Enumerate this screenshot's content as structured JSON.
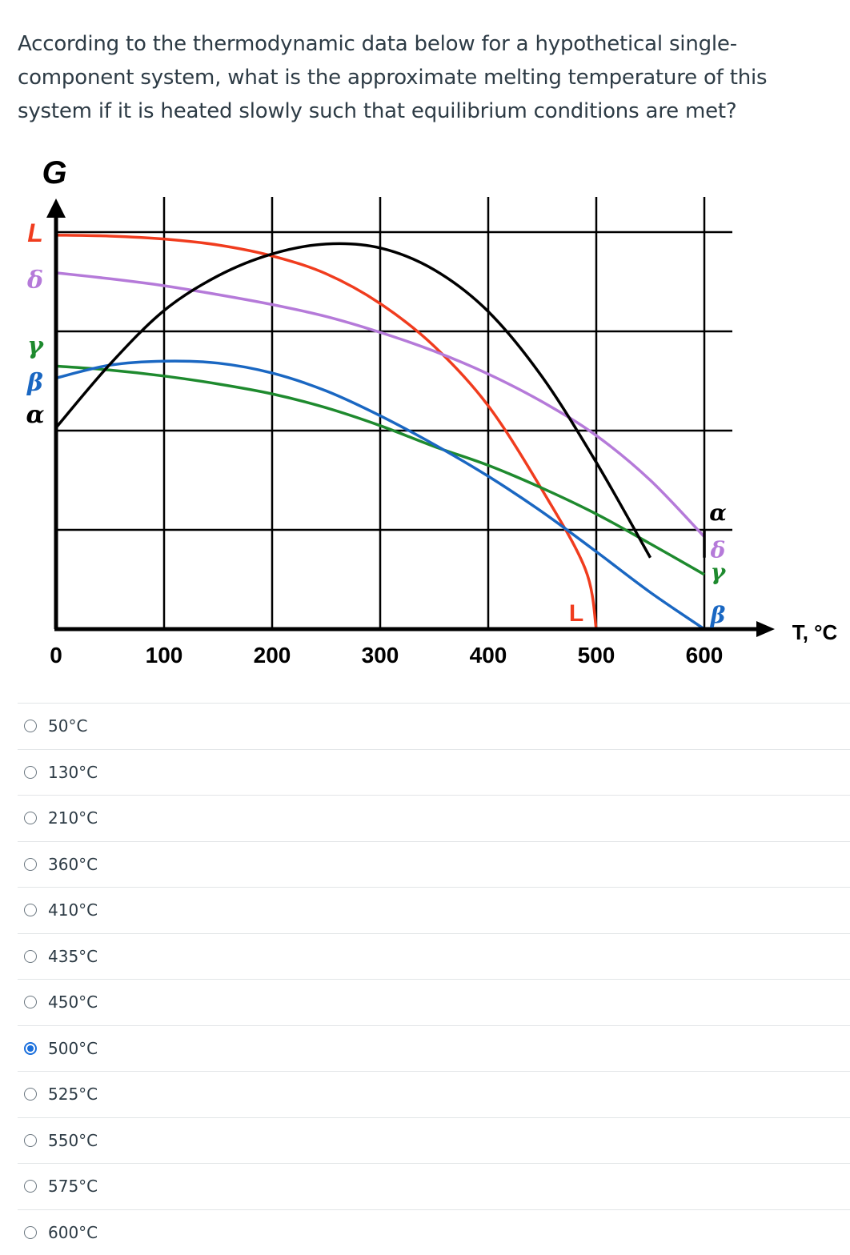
{
  "question": {
    "text": "According to the thermodynamic data below for a hypothetical single-component system, what is the approximate melting temperature of this system if it is heated slowly such that equilibrium conditions are met?"
  },
  "chart_data": {
    "type": "line",
    "ylabel": "G",
    "xlabel": "T, °C",
    "xlim": [
      0,
      600
    ],
    "x_ticks": [
      0,
      100,
      200,
      300,
      400,
      500,
      600
    ],
    "x_tick_labels": [
      "0",
      "100",
      "200",
      "300",
      "400",
      "500",
      "600"
    ],
    "ylim": [
      0,
      4
    ],
    "grid": true,
    "y_axis_labels": [
      "L",
      "δ",
      "γ",
      "β",
      "α"
    ],
    "series": [
      {
        "name": "L",
        "color": "#f03c1e",
        "x": [
          0,
          50,
          100,
          150,
          200,
          250,
          300,
          350,
          400,
          450,
          490,
          500
        ],
        "y": [
          3.97,
          3.96,
          3.93,
          3.87,
          3.76,
          3.58,
          3.28,
          2.85,
          2.25,
          1.4,
          0.6,
          0.0
        ]
      },
      {
        "name": "δ",
        "color": "#b57ad9",
        "x": [
          0,
          50,
          100,
          150,
          200,
          250,
          300,
          350,
          400,
          450,
          500,
          550,
          600
        ],
        "y": [
          3.59,
          3.53,
          3.46,
          3.37,
          3.27,
          3.15,
          2.99,
          2.8,
          2.57,
          2.29,
          1.95,
          1.5,
          0.93
        ]
      },
      {
        "name": "γ",
        "color": "#1e8a2e",
        "x": [
          0,
          50,
          100,
          150,
          200,
          250,
          300,
          350,
          400,
          450,
          500,
          550,
          600
        ],
        "y": [
          2.65,
          2.61,
          2.55,
          2.47,
          2.37,
          2.23,
          2.05,
          1.84,
          1.65,
          1.42,
          1.16,
          0.86,
          0.55
        ]
      },
      {
        "name": "β",
        "color": "#1a67c2",
        "x": [
          0,
          50,
          100,
          150,
          200,
          250,
          300,
          350,
          400,
          450,
          500,
          550,
          600
        ],
        "y": [
          2.53,
          2.66,
          2.7,
          2.68,
          2.58,
          2.4,
          2.15,
          1.86,
          1.54,
          1.18,
          0.78,
          0.37,
          0.0
        ]
      },
      {
        "name": "α",
        "color": "#000000",
        "x": [
          0,
          50,
          100,
          150,
          200,
          250,
          300,
          350,
          400,
          450,
          500,
          550,
          600
        ],
        "y": [
          2.03,
          2.67,
          3.21,
          3.56,
          3.78,
          3.88,
          3.84,
          3.62,
          3.2,
          2.54,
          1.68,
          0.72,
          1.0
        ]
      }
    ],
    "end_labels": [
      "α",
      "δ",
      "γ",
      "β"
    ],
    "inline_label": "L"
  },
  "answers": [
    {
      "label": "50°C",
      "checked": false
    },
    {
      "label": "130°C",
      "checked": false
    },
    {
      "label": "210°C",
      "checked": false
    },
    {
      "label": "360°C",
      "checked": false
    },
    {
      "label": "410°C",
      "checked": false
    },
    {
      "label": "435°C",
      "checked": false
    },
    {
      "label": "450°C",
      "checked": false
    },
    {
      "label": "500°C",
      "checked": true
    },
    {
      "label": "525°C",
      "checked": false
    },
    {
      "label": "550°C",
      "checked": false
    },
    {
      "label": "575°C",
      "checked": false
    },
    {
      "label": "600°C",
      "checked": false
    }
  ]
}
